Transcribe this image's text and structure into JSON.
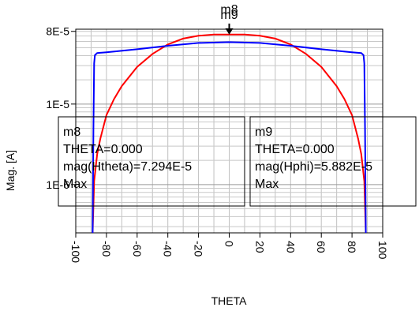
{
  "chart_data": {
    "type": "line",
    "title": "",
    "xlabel": "THETA",
    "ylabel": "Mag. [A]",
    "xlim": [
      -100,
      100
    ],
    "ylim_log10": [
      -6.6,
      -4.07
    ],
    "yscale": "log",
    "x_ticks": [
      -100,
      -80,
      -60,
      -40,
      -20,
      0,
      20,
      40,
      60,
      80,
      100
    ],
    "x_tick_labels": [
      "-100",
      "-80",
      "-60",
      "-40",
      "-20",
      "0",
      "20",
      "40",
      "60",
      "80",
      "100"
    ],
    "y_ticks": [
      8e-05,
      1e-05,
      1e-06
    ],
    "y_tick_labels": [
      "8E-5",
      "1E-5",
      "1E-6"
    ],
    "grid": true,
    "series": [
      {
        "color": "#ff0000",
        "x": [
          -89,
          -88,
          -86,
          -84,
          -80,
          -75,
          -70,
          -60,
          -50,
          -40,
          -30,
          -20,
          -10,
          0,
          10,
          20,
          30,
          40,
          50,
          60,
          70,
          75,
          80,
          84,
          86,
          88,
          89
        ],
        "y": [
          1.2e-07,
          1.1e-06,
          2.4e-06,
          3.7e-06,
          7.3e-06,
          1.16e-05,
          1.67e-05,
          2.9e-05,
          4.2e-05,
          5.5e-05,
          6.5e-05,
          7.05e-05,
          7.3e-05,
          7.294e-05,
          7.3e-05,
          7.05e-05,
          6.5e-05,
          5.5e-05,
          4.2e-05,
          2.9e-05,
          1.67e-05,
          1.16e-05,
          7.3e-06,
          3.7e-06,
          2.4e-06,
          1.1e-06,
          1.2e-07
        ]
      },
      {
        "color": "#0000ff",
        "x": [
          -89,
          -88.5,
          -88,
          -87.5,
          -86,
          -80,
          -60,
          -40,
          -20,
          0,
          20,
          40,
          60,
          80,
          86,
          87.5,
          88,
          88.5,
          89
        ],
        "y": [
          1.2e-07,
          5e-06,
          3.2e-05,
          4.05e-05,
          4.3e-05,
          4.4e-05,
          4.8e-05,
          5.3e-05,
          5.75e-05,
          5.882e-05,
          5.75e-05,
          5.3e-05,
          4.8e-05,
          4.4e-05,
          4.3e-05,
          4.05e-05,
          3.2e-05,
          5e-06,
          1.2e-07
        ]
      }
    ],
    "markers": [
      {
        "name": "m8",
        "x": 0,
        "y": 7.294e-05,
        "lines": [
          "m8",
          "THETA=0.000",
          "mag(Htheta)=7.294E-5",
          "Max"
        ]
      },
      {
        "name": "m9",
        "x": 0,
        "y": 5.882e-05,
        "lines": [
          "m9",
          "THETA=0.000",
          "mag(Hphi)=5.882E-5",
          "Max"
        ]
      }
    ]
  }
}
